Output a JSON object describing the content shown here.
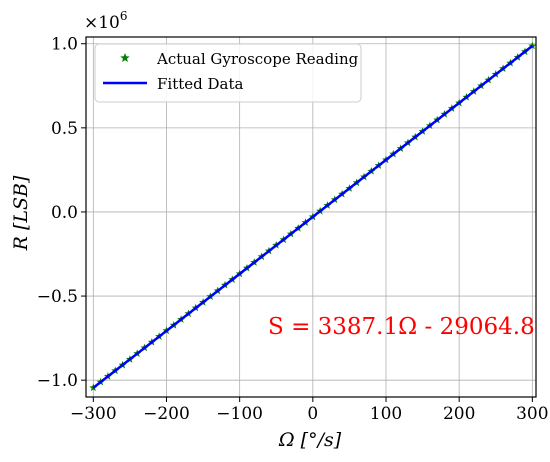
{
  "chart_data": {
    "type": "line",
    "title": "",
    "xlabel": "Ω [°/s]",
    "ylabel": "R [LSB]",
    "y_multiplier": "×10",
    "y_multiplier_exp": "6",
    "xlim": [
      -310,
      305
    ],
    "ylim": [
      -1.1,
      1.04
    ],
    "xticks": [
      -300,
      -200,
      -100,
      0,
      100,
      200,
      300
    ],
    "xtick_labels": [
      "−300",
      "−200",
      "−100",
      "0",
      "100",
      "200",
      "300"
    ],
    "yticks": [
      -1.0,
      -0.5,
      0.0,
      0.5,
      1.0
    ],
    "ytick_labels": [
      "−1.0",
      "−0.5",
      "0.0",
      "0.5",
      "1.0"
    ],
    "grid": true,
    "legend_position": "top-left",
    "annotation": "S = 3387.1Ω - 29064.8",
    "series": [
      {
        "name": "Actual Gyroscope Reading",
        "kind": "scatter",
        "marker": "star",
        "color": "#008000",
        "x": [
          -300,
          -290,
          -280,
          -270,
          -260,
          -250,
          -240,
          -230,
          -220,
          -210,
          -200,
          -190,
          -180,
          -170,
          -160,
          -150,
          -140,
          -130,
          -120,
          -110,
          -100,
          -90,
          -80,
          -70,
          -60,
          -50,
          -40,
          -30,
          -20,
          -10,
          0,
          10,
          20,
          30,
          40,
          50,
          60,
          70,
          80,
          90,
          100,
          110,
          120,
          130,
          140,
          150,
          160,
          170,
          180,
          190,
          200,
          210,
          220,
          230,
          240,
          250,
          260,
          270,
          280,
          290,
          300
        ],
        "y": [
          -1.045,
          -1.011,
          -0.977,
          -0.944,
          -0.91,
          -0.876,
          -0.842,
          -0.808,
          -0.774,
          -0.74,
          -0.706,
          -0.673,
          -0.639,
          -0.605,
          -0.571,
          -0.537,
          -0.503,
          -0.469,
          -0.435,
          -0.402,
          -0.368,
          -0.334,
          -0.3,
          -0.266,
          -0.232,
          -0.198,
          -0.165,
          -0.131,
          -0.097,
          -0.063,
          -0.029,
          0.005,
          0.039,
          0.073,
          0.106,
          0.14,
          0.174,
          0.208,
          0.242,
          0.276,
          0.31,
          0.344,
          0.377,
          0.411,
          0.445,
          0.479,
          0.513,
          0.547,
          0.581,
          0.615,
          0.648,
          0.682,
          0.716,
          0.75,
          0.784,
          0.818,
          0.852,
          0.885,
          0.919,
          0.953,
          0.987
        ]
      },
      {
        "name": "Fitted Data",
        "kind": "line",
        "color": "#0000ff",
        "x": [
          -300,
          300
        ],
        "y": [
          -1.045,
          0.987
        ]
      }
    ]
  },
  "colors": {
    "annotation": "#ff0000",
    "grid": "#b0b0b0",
    "axes": "#000000"
  }
}
